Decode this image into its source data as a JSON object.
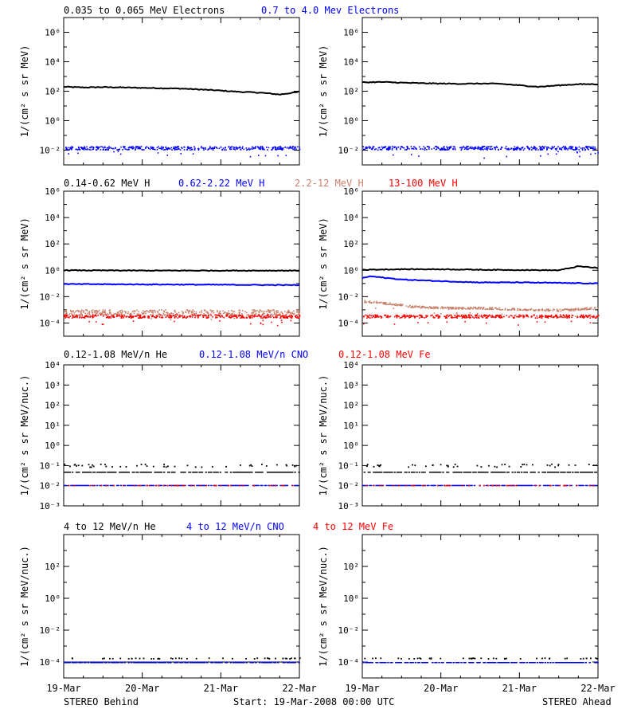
{
  "footer": {
    "left": "STEREO Behind",
    "center": "Start: 19-Mar-2008 00:00 UTC",
    "right": "STEREO Ahead"
  },
  "x_ticks": [
    "19-Mar",
    "20-Mar",
    "21-Mar",
    "22-Mar"
  ],
  "colors": {
    "black": "#000000",
    "blue": "#0000ff",
    "tan": "#c8806a",
    "red": "#ff0000"
  },
  "chart_data": [
    {
      "type": "scatter",
      "row_title": [
        {
          "text": "0.035 to 0.065 MeV Electrons",
          "color": "#000000"
        },
        {
          "text": "0.7 to 4.0 Mev Electrons",
          "color": "#0000ff"
        }
      ],
      "ylabel": "1/(cm² s sr MeV)",
      "yscale": "log",
      "ylim_exp": [
        -3,
        7
      ],
      "ytick_exps": [
        -2,
        0,
        2,
        4,
        6
      ],
      "ytick_labels": [
        "10⁻²",
        "10⁰",
        "10²",
        "10⁴",
        "10⁶"
      ],
      "x_days": [
        0,
        3
      ],
      "panels": [
        {
          "name": "STEREO Behind",
          "series": [
            {
              "color": "#000000",
              "style": "line",
              "x": [
                0,
                0.25,
                0.5,
                0.75,
                1.0,
                1.25,
                1.5,
                1.75,
                2.0,
                2.25,
                2.5,
                2.75,
                3.0
              ],
              "y": [
                200,
                180,
                190,
                180,
                170,
                160,
                150,
                130,
                110,
                90,
                80,
                60,
                90
              ]
            },
            {
              "color": "#0000ff",
              "style": "noisy",
              "x": [
                0,
                3
              ],
              "y": [
                0.015,
                0.015
              ],
              "spread_dex": 0.12
            }
          ]
        },
        {
          "name": "STEREO Ahead",
          "series": [
            {
              "color": "#000000",
              "style": "line",
              "x": [
                0,
                0.25,
                0.5,
                0.75,
                1.0,
                1.25,
                1.5,
                1.75,
                2.0,
                2.25,
                2.5,
                2.75,
                3.0
              ],
              "y": [
                400,
                420,
                380,
                350,
                330,
                320,
                330,
                320,
                250,
                200,
                250,
                300,
                300
              ]
            },
            {
              "color": "#0000ff",
              "style": "noisy",
              "x": [
                0,
                3
              ],
              "y": [
                0.015,
                0.015
              ],
              "spread_dex": 0.12
            }
          ]
        }
      ]
    },
    {
      "type": "scatter",
      "row_title": [
        {
          "text": "0.14-0.62 MeV H",
          "color": "#000000"
        },
        {
          "text": "0.62-2.22 MeV H",
          "color": "#0000ff"
        },
        {
          "text": "2.2-12 MeV H",
          "color": "#c8806a"
        },
        {
          "text": "13-100 MeV H",
          "color": "#ff0000"
        }
      ],
      "ylabel": "1/(cm² s sr MeV)",
      "yscale": "log",
      "ylim_exp": [
        -5,
        6
      ],
      "ytick_exps": [
        -4,
        -2,
        0,
        2,
        4,
        6
      ],
      "ytick_labels": [
        "10⁻⁴",
        "10⁻²",
        "10⁰",
        "10²",
        "10⁴",
        "10⁶"
      ],
      "x_days": [
        0,
        3
      ],
      "panels": [
        {
          "name": "STEREO Behind",
          "series": [
            {
              "color": "#000000",
              "style": "line",
              "x": [
                0,
                1,
                2,
                3
              ],
              "y": [
                1.0,
                0.95,
                0.95,
                0.95
              ]
            },
            {
              "color": "#0000ff",
              "style": "line",
              "x": [
                0,
                1,
                2,
                3
              ],
              "y": [
                0.09,
                0.085,
                0.08,
                0.075
              ]
            },
            {
              "color": "#c8806a",
              "style": "noisy",
              "x": [
                0,
                3
              ],
              "y": [
                0.0007,
                0.0007
              ],
              "spread_dex": 0.2
            },
            {
              "color": "#ff0000",
              "style": "noisy",
              "x": [
                0,
                3
              ],
              "y": [
                0.00035,
                0.00035
              ],
              "spread_dex": 0.12
            }
          ]
        },
        {
          "name": "STEREO Ahead",
          "series": [
            {
              "color": "#000000",
              "style": "line",
              "x": [
                0,
                0.5,
                1,
                1.5,
                2,
                2.5,
                2.75,
                3.0
              ],
              "y": [
                1.1,
                1.2,
                1.2,
                1.1,
                1.05,
                1.0,
                2.0,
                1.5
              ]
            },
            {
              "color": "#0000ff",
              "style": "line",
              "x": [
                0,
                0.1,
                0.5,
                1,
                1.5,
                2,
                2.5,
                3.0
              ],
              "y": [
                0.25,
                0.35,
                0.2,
                0.15,
                0.12,
                0.12,
                0.11,
                0.1
              ]
            },
            {
              "color": "#c8806a",
              "style": "noisy",
              "x": [
                0,
                0.2,
                0.6,
                1.0,
                1.5,
                2.0,
                2.5,
                3.0
              ],
              "y": [
                0.005,
                0.004,
                0.002,
                0.0015,
                0.0015,
                0.0012,
                0.001,
                0.0015
              ],
              "spread_dex": 0.08
            },
            {
              "color": "#ff0000",
              "style": "noisy",
              "x": [
                0,
                3
              ],
              "y": [
                0.00035,
                0.00035
              ],
              "spread_dex": 0.12
            }
          ]
        }
      ]
    },
    {
      "type": "scatter",
      "row_title": [
        {
          "text": "0.12-1.08 MeV/n He",
          "color": "#000000"
        },
        {
          "text": "0.12-1.08 MeV/n CNO",
          "color": "#0000ff"
        },
        {
          "text": "0.12-1.08 MeV Fe",
          "color": "#ff0000"
        }
      ],
      "ylabel": "1/(cm² s sr MeV/nuc.)",
      "yscale": "log",
      "ylim_exp": [
        -3,
        4
      ],
      "ytick_exps": [
        -3,
        -2,
        -1,
        0,
        1,
        2,
        3,
        4
      ],
      "ytick_labels": [
        "10⁻³",
        "10⁻²",
        "10⁻¹",
        "10⁰",
        "10¹",
        "10²",
        "10³",
        "10⁴"
      ],
      "x_days": [
        0,
        3
      ],
      "panels": [
        {
          "name": "STEREO Behind",
          "series": [
            {
              "color": "#000000",
              "style": "dashes",
              "x": [
                0,
                3
              ],
              "y": [
                0.05,
                0.05
              ]
            },
            {
              "color": "#000000",
              "style": "sparse",
              "x": [
                0,
                3
              ],
              "y": [
                0.1,
                0.1
              ],
              "spread_dex": 0.15
            },
            {
              "color": "#0000ff",
              "style": "dashes",
              "x": [
                0,
                3
              ],
              "y": [
                0.011,
                0.011
              ]
            },
            {
              "color": "#ff0000",
              "style": "sparse",
              "x": [
                0,
                3
              ],
              "y": [
                0.011,
                0.011
              ],
              "spread_dex": 0.0
            }
          ]
        },
        {
          "name": "STEREO Ahead",
          "series": [
            {
              "color": "#000000",
              "style": "dashes",
              "x": [
                0,
                3
              ],
              "y": [
                0.05,
                0.05
              ]
            },
            {
              "color": "#000000",
              "style": "sparse",
              "x": [
                0,
                3
              ],
              "y": [
                0.1,
                0.1
              ],
              "spread_dex": 0.15
            },
            {
              "color": "#0000ff",
              "style": "dashes",
              "x": [
                0,
                3
              ],
              "y": [
                0.011,
                0.011
              ]
            },
            {
              "color": "#ff0000",
              "style": "sparse",
              "x": [
                0,
                3
              ],
              "y": [
                0.011,
                0.011
              ],
              "spread_dex": 0.0
            }
          ]
        }
      ]
    },
    {
      "type": "scatter",
      "row_title": [
        {
          "text": "4 to 12 MeV/n He",
          "color": "#000000"
        },
        {
          "text": "4 to 12 MeV/n CNO",
          "color": "#0000ff"
        },
        {
          "text": "4 to 12 MeV Fe",
          "color": "#ff0000"
        }
      ],
      "ylabel": "1/(cm² s sr MeV/nuc.)",
      "yscale": "log",
      "ylim_exp": [
        -5,
        4
      ],
      "ytick_exps": [
        -4,
        -2,
        0,
        2
      ],
      "ytick_labels": [
        "10⁻⁴",
        "10⁻²",
        "10⁰",
        "10²"
      ],
      "x_days": [
        0,
        3
      ],
      "panels": [
        {
          "name": "STEREO Behind",
          "series": [
            {
              "color": "#000000",
              "style": "flatline",
              "x": [
                0,
                3
              ],
              "y": [
                0.0001,
                0.0001
              ]
            },
            {
              "color": "#0000ff",
              "style": "dashes",
              "x": [
                0,
                3
              ],
              "y": [
                0.0001,
                0.0001
              ]
            },
            {
              "color": "#000000",
              "style": "sparse",
              "x": [
                0,
                3
              ],
              "y": [
                0.00018,
                0.00018
              ],
              "spread_dex": 0.05
            }
          ]
        },
        {
          "name": "STEREO Ahead",
          "series": [
            {
              "color": "#0000ff",
              "style": "dashes",
              "x": [
                0,
                3
              ],
              "y": [
                0.0001,
                0.0001
              ]
            },
            {
              "color": "#000000",
              "style": "sparse",
              "x": [
                0,
                3
              ],
              "y": [
                0.00018,
                0.00018
              ],
              "spread_dex": 0.05
            }
          ]
        }
      ]
    }
  ]
}
